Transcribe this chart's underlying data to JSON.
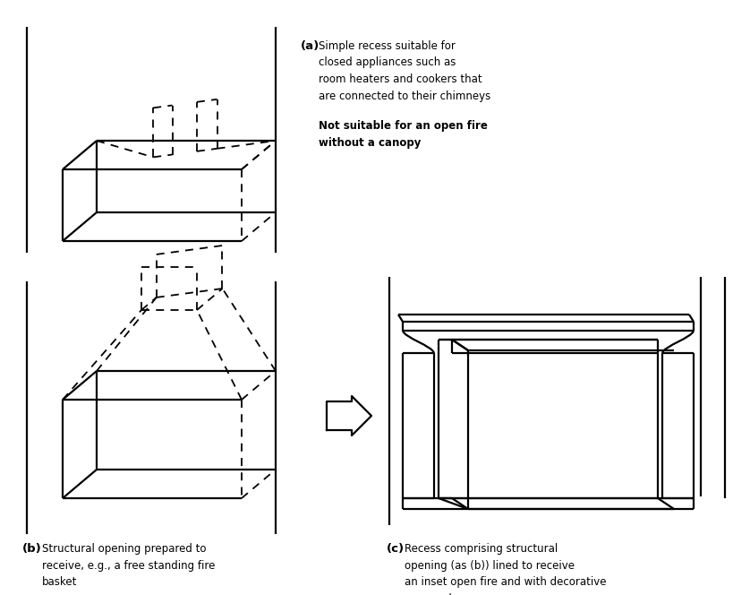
{
  "bg_color": "#ffffff",
  "lc": "#000000",
  "text_a1": "Simple recess suitable for\nclosed appliances such as\nroom heaters and cookers that\nare connected to their chimneys",
  "text_a2": "Not suitable for an open fire\nwithout a canopy",
  "text_b": "Structural opening prepared to\nreceive, e.g., a free standing fire\nbasket",
  "text_c": "Recess comprising structural\nopening (as (b)) lined to receive\nan inset open fire and with decorative\nsurround.",
  "lw_solid": 1.6,
  "lw_dash": 1.3
}
